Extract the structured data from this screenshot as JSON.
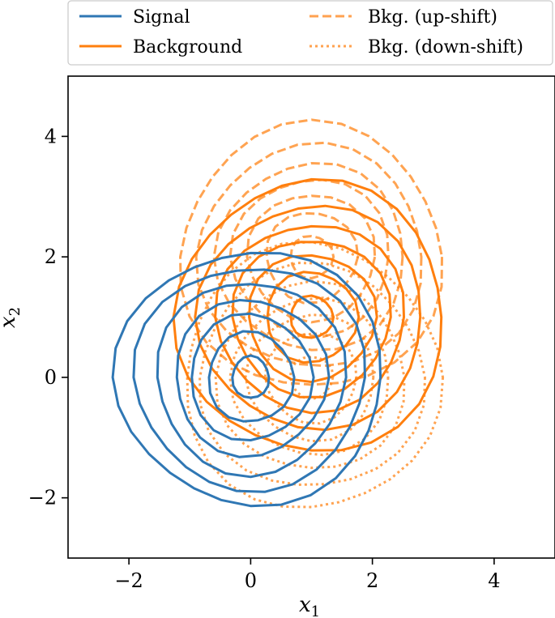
{
  "chart_data": {
    "type": "contour",
    "xlabel": "x",
    "xlabel_sub": "1",
    "ylabel": "x",
    "ylabel_sub": "2",
    "xlim": [
      -3,
      5
    ],
    "ylim": [
      -3,
      5
    ],
    "x_ticks": [
      -2,
      0,
      2,
      4
    ],
    "y_ticks": [
      -2,
      0,
      2,
      4
    ],
    "x_tick_labels": [
      "−2",
      "0",
      "2",
      "4"
    ],
    "y_tick_labels": [
      "−2",
      "0",
      "2",
      "4"
    ],
    "grid": false,
    "legend_position": "top",
    "legend_columns": 2,
    "series": [
      {
        "name": "Signal",
        "color": "#2f77b4",
        "style": "solid",
        "center": [
          0.0,
          0.0
        ],
        "radii": [
          {
            "rx": 0.3,
            "ry": 0.35
          },
          {
            "rx": 0.7,
            "ry": 0.75
          },
          {
            "rx": 1.0,
            "ry": 1.05
          },
          {
            "rx": 1.25,
            "ry": 1.3
          },
          {
            "rx": 1.55,
            "ry": 1.6
          },
          {
            "rx": 1.9,
            "ry": 1.85
          },
          {
            "rx": 2.2,
            "ry": 2.1
          }
        ]
      },
      {
        "name": "Background",
        "color": "#ff7f0e",
        "style": "solid",
        "center": [
          1.0,
          1.0
        ],
        "radii": [
          {
            "rx": 0.35,
            "ry": 0.35
          },
          {
            "rx": 0.75,
            "ry": 0.75
          },
          {
            "rx": 1.05,
            "ry": 1.05
          },
          {
            "rx": 1.3,
            "ry": 1.3
          },
          {
            "rx": 1.55,
            "ry": 1.55
          },
          {
            "rx": 1.85,
            "ry": 1.85
          },
          {
            "rx": 2.2,
            "ry": 2.25
          }
        ]
      },
      {
        "name": "Bkg. (up-shift)",
        "color": "#ff7f0e",
        "style": "dashed",
        "center": [
          1.0,
          2.0
        ],
        "radii": [
          {
            "rx": 0.35,
            "ry": 0.35
          },
          {
            "rx": 0.75,
            "ry": 0.75
          },
          {
            "rx": 1.05,
            "ry": 1.05
          },
          {
            "rx": 1.3,
            "ry": 1.3
          },
          {
            "rx": 1.55,
            "ry": 1.55
          },
          {
            "rx": 1.85,
            "ry": 1.85
          },
          {
            "rx": 2.15,
            "ry": 2.2
          }
        ]
      },
      {
        "name": "Bkg. (down-shift)",
        "color": "#ff7f0e",
        "style": "dotted",
        "center": [
          1.0,
          0.0
        ],
        "radii": [
          {
            "rx": 0.35,
            "ry": 0.35
          },
          {
            "rx": 0.75,
            "ry": 0.75
          },
          {
            "rx": 1.05,
            "ry": 1.05
          },
          {
            "rx": 1.3,
            "ry": 1.3
          },
          {
            "rx": 1.55,
            "ry": 1.55
          },
          {
            "rx": 1.85,
            "ry": 1.85
          },
          {
            "rx": 2.1,
            "ry": 2.2
          }
        ]
      }
    ]
  }
}
